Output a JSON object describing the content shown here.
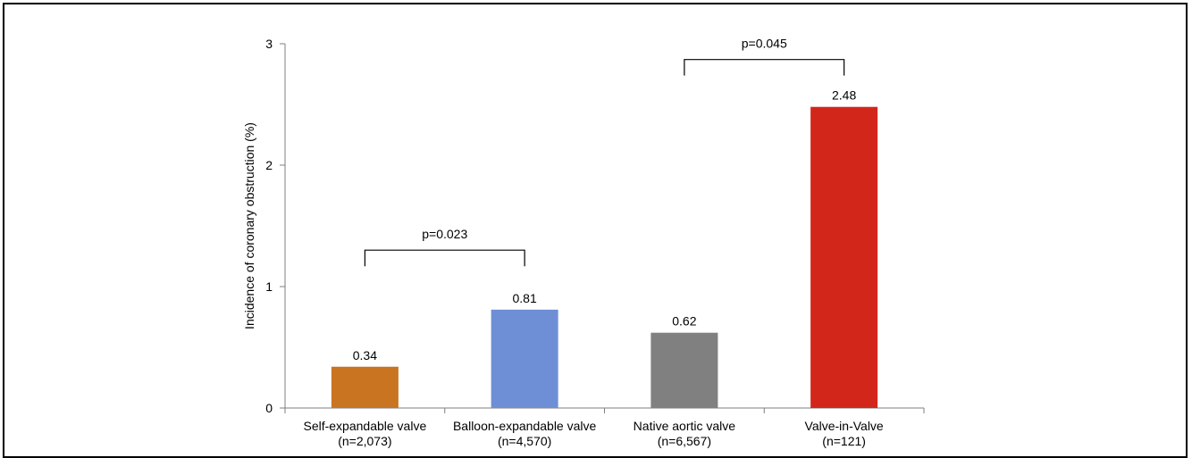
{
  "chart_data": {
    "type": "bar",
    "title": "",
    "ylabel": "Incidence of coronary obstruction (%)",
    "xlabel": "",
    "ylim": [
      0,
      3
    ],
    "yticks": [
      0,
      1,
      2,
      3
    ],
    "grid": false,
    "categories": [
      {
        "line1": "Self-expandable valve",
        "line2": "(n=2,073)"
      },
      {
        "line1": "Balloon-expandable valve",
        "line2": "(n=4,570)"
      },
      {
        "line1": "Native aortic valve",
        "line2": "(n=6,567)"
      },
      {
        "line1": "Valve-in-Valve",
        "line2": "(n=121)"
      }
    ],
    "values": [
      0.34,
      0.81,
      0.62,
      2.48
    ],
    "value_labels": [
      "0.34",
      "0.81",
      "0.62",
      "2.48"
    ],
    "colors": [
      "#C87420",
      "#6E8FD6",
      "#808080",
      "#D3261B"
    ],
    "comparisons": [
      {
        "from": 0,
        "to": 1,
        "label": "p=0.023",
        "level": 1.3
      },
      {
        "from": 2,
        "to": 3,
        "label": "p=0.045",
        "level": 2.87
      }
    ]
  }
}
